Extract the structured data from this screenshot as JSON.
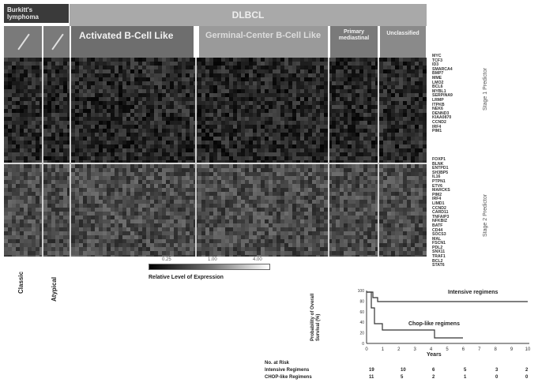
{
  "header": {
    "burkitt": "Burkitt's lymphoma",
    "dlbcl": "DLBCL",
    "abc": "Activated B-Cell Like",
    "gcb": "Germinal-Center B-Cell Like",
    "pmbl": "Primary mediastinal",
    "unclassified": "Unclassified"
  },
  "colors": {
    "heatmap_dark": "#1e1e1e",
    "heatmap_mid": "#4a4a4a",
    "header_gray": "#a9a9a9"
  },
  "genes_upper": [
    "MYC",
    "TCF3",
    "ID3",
    "SMARCA4",
    "BMP7",
    "MME",
    "LMO2",
    "BCL6",
    "MYBL1",
    "SERPINA9",
    "LRMP",
    "ITPKB",
    "NEK6",
    "DENND3",
    "KIAA0870",
    "CCND2",
    "IRF4",
    "PIM1"
  ],
  "genes_lower": [
    "FOXP1",
    "BLNK",
    "ENTPD1",
    "SH3BP5",
    "IL16",
    "PTPN1",
    "ETV6",
    "MARCKS",
    "PIM2",
    "IRF4",
    "LIMD1",
    "CCND2",
    "CARD11",
    "TNFAIP3",
    "NFKBIZ",
    "BATF",
    "CD44",
    "SOCS3",
    "MAL",
    "FSCN1",
    "PDL2",
    "SNX11",
    "TRAF1",
    "BCL2",
    "STAT6"
  ],
  "side_labels": {
    "upper": "Stage 1 Predictor",
    "lower": "Stage 2 Predictor"
  },
  "bottom_labels": {
    "classic": "Classic",
    "atypical": "Atypical"
  },
  "scale": {
    "ticks": [
      "0.25",
      "1.00",
      "4.00"
    ],
    "title": "Relative Level of Expression"
  },
  "km": {
    "ylabel": "Probability of Overall Survival (%)",
    "yticks": [
      "100",
      "80",
      "60",
      "40",
      "20",
      "0"
    ],
    "xticks": [
      "0",
      "1",
      "2",
      "3",
      "4",
      "5",
      "6",
      "7",
      "8",
      "9",
      "10"
    ],
    "xlabel": "Years",
    "curve_intensive": "Intensive regimens",
    "curve_chop": "Chop-like regimens",
    "risk_title": "No. at Risk",
    "risk_intensive_label": "Intensive Regimens",
    "risk_chop_label": "CHOP-like Regimens",
    "risk_intensive": [
      "19",
      "10",
      "6",
      "5",
      "3",
      "2"
    ],
    "risk_chop": [
      "11",
      "5",
      "2",
      "1",
      "0",
      "0"
    ]
  }
}
